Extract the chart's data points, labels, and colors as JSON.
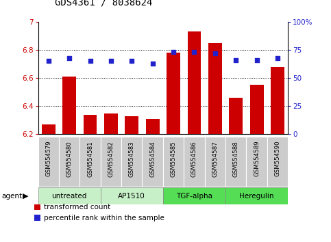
{
  "title": "GDS4361 / 8038624",
  "samples": [
    "GSM554579",
    "GSM554580",
    "GSM554581",
    "GSM554582",
    "GSM554583",
    "GSM554584",
    "GSM554585",
    "GSM554586",
    "GSM554587",
    "GSM554588",
    "GSM554589",
    "GSM554590"
  ],
  "bar_values": [
    6.27,
    6.61,
    6.34,
    6.35,
    6.33,
    6.31,
    6.78,
    6.93,
    6.85,
    6.46,
    6.55,
    6.68
  ],
  "dot_values": [
    65,
    68,
    65,
    65,
    65,
    63,
    73,
    73,
    72,
    66,
    66,
    68
  ],
  "ylim_left": [
    6.2,
    7.0
  ],
  "ylim_right": [
    0,
    100
  ],
  "yticks_left": [
    6.2,
    6.4,
    6.6,
    6.8,
    7.0
  ],
  "ytick_labels_left": [
    "6.2",
    "6.4",
    "6.6",
    "6.8",
    "7"
  ],
  "yticks_right": [
    0,
    25,
    50,
    75,
    100
  ],
  "ytick_labels_right": [
    "0",
    "25",
    "50",
    "75",
    "100%"
  ],
  "agent_groups": [
    {
      "label": "untreated",
      "start": 0,
      "end": 3
    },
    {
      "label": "AP1510",
      "start": 3,
      "end": 6
    },
    {
      "label": "TGF-alpha",
      "start": 6,
      "end": 9
    },
    {
      "label": "Heregulin",
      "start": 9,
      "end": 12
    }
  ],
  "group_colors": [
    "#c8f0c8",
    "#c8f0c8",
    "#55dd55",
    "#55dd55"
  ],
  "bar_color": "#cc0000",
  "dot_color": "#2222cc",
  "bar_bottom": 6.2,
  "sample_box_color": "#cccccc",
  "legend_items": [
    {
      "color": "#cc0000",
      "label": "transformed count"
    },
    {
      "color": "#2222cc",
      "label": "percentile rank within the sample"
    }
  ]
}
